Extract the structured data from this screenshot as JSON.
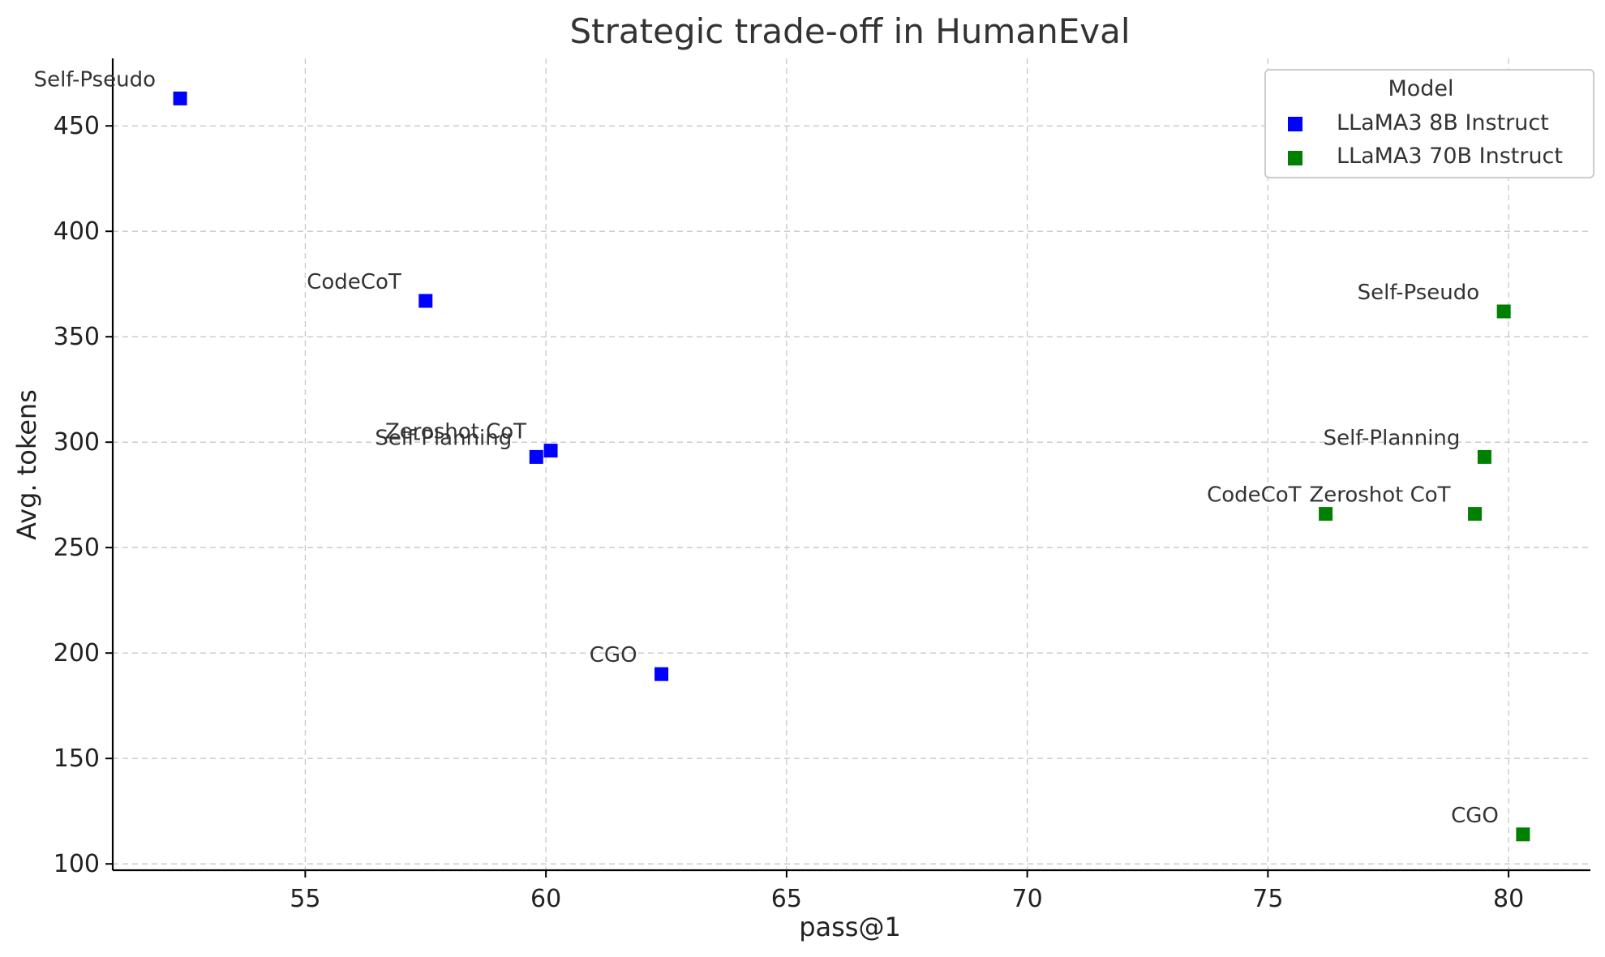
{
  "chart_data": {
    "type": "scatter",
    "title": "Strategic trade-off in HumanEval",
    "xlabel": "pass@1",
    "ylabel": "Avg. tokens",
    "xlim": [
      51,
      81.7
    ],
    "ylim": [
      97,
      482
    ],
    "xticks": [
      55,
      60,
      65,
      70,
      75,
      80
    ],
    "yticks": [
      100,
      150,
      200,
      250,
      300,
      350,
      400,
      450
    ],
    "grid": true,
    "legend": {
      "title": "Model",
      "position": "top-right"
    },
    "series": [
      {
        "name": "LLaMA3 8B Instruct",
        "color": "#0000ff",
        "marker": "square",
        "points": [
          {
            "label": "Self-Pseudo",
            "x": 52.4,
            "y": 463
          },
          {
            "label": "CodeCoT",
            "x": 57.5,
            "y": 367
          },
          {
            "label": "Zeroshot CoT",
            "x": 60.1,
            "y": 296
          },
          {
            "label": "Self-Planning",
            "x": 59.8,
            "y": 293
          },
          {
            "label": "CGO",
            "x": 62.4,
            "y": 190
          }
        ]
      },
      {
        "name": "LLaMA3 70B Instruct",
        "color": "#008000",
        "marker": "square",
        "points": [
          {
            "label": "Self-Pseudo",
            "x": 79.9,
            "y": 362
          },
          {
            "label": "Self-Planning",
            "x": 79.5,
            "y": 293
          },
          {
            "label": "CodeCoT",
            "x": 76.2,
            "y": 266
          },
          {
            "label": "Zeroshot CoT",
            "x": 79.3,
            "y": 266
          },
          {
            "label": "CGO",
            "x": 80.3,
            "y": 114
          }
        ]
      }
    ]
  }
}
